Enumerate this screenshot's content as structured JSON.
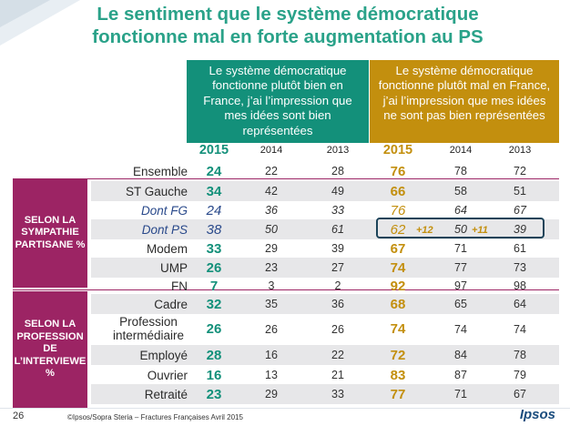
{
  "title": {
    "line1": "Le sentiment que le système démocratique",
    "line2": "fonctionne mal en forte augmentation au PS"
  },
  "headers": {
    "good": "Le système démocratique fonctionne plutôt bien en France, j’ai l’impression que mes idées sont bien représentées",
    "bad": "Le système démocratique fonctionne plutôt mal en France, j’ai l’impression que mes idées ne sont pas bien représentées"
  },
  "years": [
    "2015",
    "2014",
    "2013"
  ],
  "side_labels": {
    "party": "SELON LA SYMPATHIE PARTISANE %",
    "profession": "SELON LA PROFESSION DE L’INTERVIEWE %"
  },
  "highlight_deltas": [
    "+12",
    "+11"
  ],
  "colors": {
    "green": "#13907a",
    "gold": "#c38f0e",
    "purple": "#9c2464",
    "navy": "#1b4359"
  },
  "chart_data": {
    "type": "table",
    "columns": [
      "2015",
      "2014",
      "2013",
      "2015",
      "2014",
      "2013"
    ],
    "rows": [
      {
        "label": "Ensemble",
        "group": "total",
        "good": [
          "24",
          "22",
          "28"
        ],
        "bad": [
          "76",
          "78",
          "72"
        ]
      },
      {
        "label": "ST Gauche",
        "group": "party",
        "good": [
          "34",
          "42",
          "49"
        ],
        "bad": [
          "66",
          "58",
          "51"
        ]
      },
      {
        "label": "Dont FG",
        "group": "party",
        "italic": true,
        "good": [
          "24",
          "36",
          "33"
        ],
        "bad": [
          "76",
          "64",
          "67"
        ]
      },
      {
        "label": "Dont PS",
        "group": "party",
        "italic": true,
        "good": [
          "38",
          "50",
          "61"
        ],
        "bad": [
          "62",
          "50",
          "39"
        ]
      },
      {
        "label": "Modem",
        "group": "party",
        "good": [
          "33",
          "29",
          "39"
        ],
        "bad": [
          "67",
          "71",
          "61"
        ]
      },
      {
        "label": "UMP",
        "group": "party",
        "good": [
          "26",
          "23",
          "27"
        ],
        "bad": [
          "74",
          "77",
          "73"
        ]
      },
      {
        "label": "FN",
        "group": "party",
        "good": [
          "7",
          "3",
          "2"
        ],
        "bad": [
          "92",
          "97",
          "98"
        ]
      },
      {
        "label": "Cadre",
        "group": "profession",
        "good": [
          "32",
          "35",
          "36"
        ],
        "bad": [
          "68",
          "65",
          "64"
        ]
      },
      {
        "label": "Profession intermédiaire",
        "group": "profession",
        "good": [
          "26",
          "26",
          "26"
        ],
        "bad": [
          "74",
          "74",
          "74"
        ]
      },
      {
        "label": "Employé",
        "group": "profession",
        "good": [
          "28",
          "16",
          "22"
        ],
        "bad": [
          "72",
          "84",
          "78"
        ]
      },
      {
        "label": "Ouvrier",
        "group": "profession",
        "good": [
          "16",
          "13",
          "21"
        ],
        "bad": [
          "83",
          "87",
          "79"
        ]
      },
      {
        "label": "Retraité",
        "group": "profession",
        "good": [
          "23",
          "29",
          "33"
        ],
        "bad": [
          "77",
          "71",
          "67"
        ]
      }
    ]
  },
  "footer": {
    "page": "26",
    "source": "©Ipsos/Sopra Steria –  Fractures Françaises  Avril 2015",
    "logo": "Ipsos"
  }
}
